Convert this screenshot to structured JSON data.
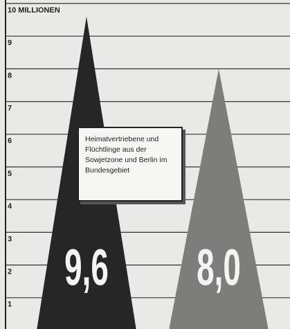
{
  "chart_data": {
    "type": "triangle",
    "annotation": "Heimatvertriebene und Flüchtlinge aus der Sowjetzone und Berlin im Bundesgebiet",
    "categories": [
      null,
      null
    ],
    "values": [
      9.6,
      8.0
    ],
    "value_labels": [
      "9,6",
      "8,0"
    ],
    "colors": [
      "#262626",
      "#7d7d7b"
    ],
    "ylim": [
      0,
      10
    ],
    "yticks": [
      1,
      2,
      3,
      4,
      5,
      6,
      7,
      8,
      9,
      {
        "value": 10,
        "label": "10 MILLIONEN"
      }
    ],
    "grid": true
  }
}
